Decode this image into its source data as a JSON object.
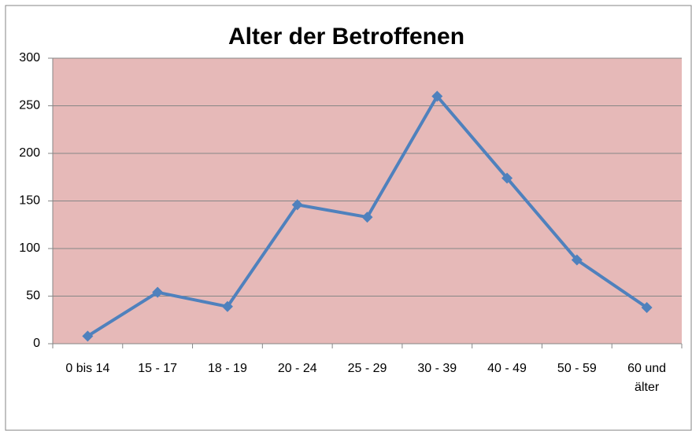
{
  "chart_data": {
    "type": "line",
    "title": "Alter der Betroffenen",
    "categories": [
      "0 bis 14",
      "15 - 17",
      "18 - 19",
      "20 - 24",
      "25 - 29",
      "30 - 39",
      "40 - 49",
      "50 - 59",
      "60 und älter"
    ],
    "series": [
      {
        "name": "Alter der Betroffenen",
        "color": "#4f81bd",
        "values": [
          8,
          54,
          39,
          146,
          133,
          260,
          174,
          88,
          38
        ]
      }
    ],
    "ylim": [
      0,
      300
    ],
    "yticks": [
      0,
      50,
      100,
      150,
      200,
      250,
      300
    ],
    "grid": true,
    "plot_background": "#e6b9b8"
  }
}
